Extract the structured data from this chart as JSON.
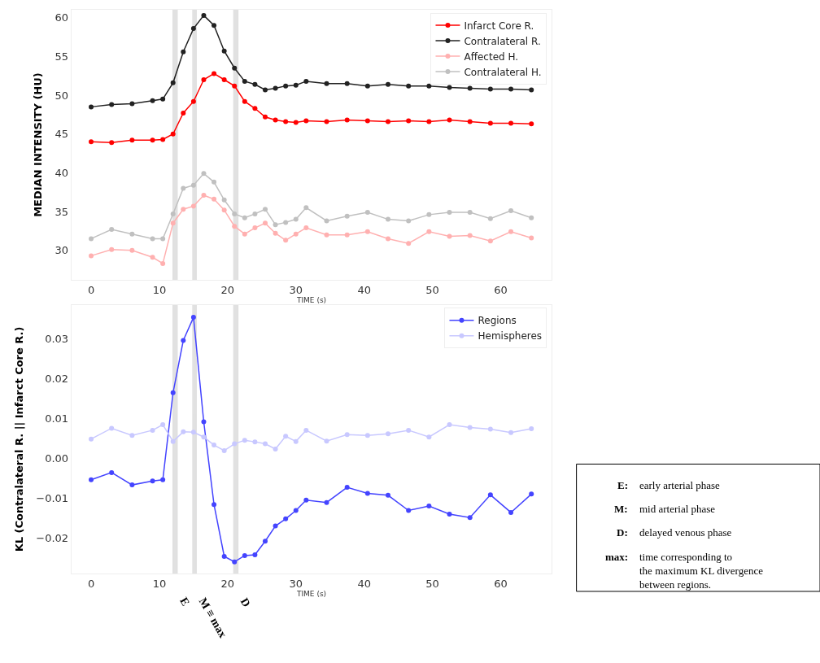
{
  "chart_data": [
    {
      "type": "line",
      "ylabel": "MEDIAN INTENSITY (HU)",
      "xlabel": "TIME (s)",
      "x": [
        0,
        3,
        6,
        9,
        10.5,
        12,
        13.5,
        15,
        16.5,
        18,
        19.5,
        21,
        22.5,
        24,
        25.5,
        27,
        28.5,
        30,
        31.5,
        34.5,
        37.5,
        40.5,
        43.5,
        46.5,
        49.5,
        52.5,
        55.5,
        58.5,
        61.5,
        64.5
      ],
      "series": [
        {
          "name": "Infarct Core R.",
          "color": "#ff0000",
          "values": [
            44.0,
            43.9,
            44.2,
            44.2,
            44.3,
            45.0,
            47.7,
            49.2,
            52.0,
            52.8,
            52.0,
            51.2,
            49.2,
            48.3,
            47.2,
            46.8,
            46.6,
            46.5,
            46.7,
            46.6,
            46.8,
            46.7,
            46.6,
            46.7,
            46.6,
            46.8,
            46.6,
            46.4,
            46.4,
            46.3
          ]
        },
        {
          "name": "Contralateral R.",
          "color": "#222222",
          "values": [
            48.5,
            48.8,
            48.9,
            49.3,
            49.5,
            51.6,
            55.6,
            58.6,
            60.3,
            59.0,
            55.7,
            53.5,
            51.8,
            51.4,
            50.7,
            50.9,
            51.2,
            51.3,
            51.8,
            51.5,
            51.5,
            51.2,
            51.4,
            51.2,
            51.2,
            51.0,
            50.9,
            50.8,
            50.8,
            50.7
          ]
        },
        {
          "name": "Affected H.",
          "color": "#ffb0b0",
          "values": [
            29.3,
            30.1,
            30.0,
            29.1,
            28.3,
            33.5,
            35.3,
            35.7,
            37.1,
            36.6,
            35.2,
            33.1,
            32.1,
            32.9,
            33.5,
            32.2,
            31.3,
            32.1,
            32.9,
            32.0,
            32.0,
            32.4,
            31.5,
            30.9,
            32.4,
            31.8,
            31.9,
            31.2,
            32.4,
            31.6
          ]
        },
        {
          "name": "Contralateral H.",
          "color": "#c0c0c0",
          "values": [
            31.5,
            32.7,
            32.1,
            31.5,
            31.5,
            34.7,
            38.0,
            38.4,
            39.9,
            38.8,
            36.5,
            34.7,
            34.2,
            34.7,
            35.3,
            33.3,
            33.6,
            34.0,
            35.5,
            33.8,
            34.4,
            34.9,
            34.0,
            33.8,
            34.6,
            34.9,
            34.9,
            34.1,
            35.1,
            34.2
          ]
        }
      ],
      "xlim": [
        -2.9,
        67.5
      ],
      "xticks": [
        0,
        10,
        20,
        30,
        40,
        50,
        60
      ],
      "ylim": [
        26.2,
        61
      ],
      "yticks": [
        30,
        35,
        40,
        45,
        50,
        55,
        60
      ],
      "bands": [
        {
          "axis": "x",
          "from": 12.0,
          "to": 12.6,
          "color": "#aaaaaa"
        },
        {
          "axis": "x",
          "from": 14.9,
          "to": 15.4,
          "color": "#aaaaaa"
        },
        {
          "axis": "x",
          "from": 20.9,
          "to": 21.5,
          "color": "#aaaaaa"
        }
      ],
      "legend": "top right",
      "marker": "circle",
      "line_style": "solid",
      "grid": false
    },
    {
      "type": "line",
      "ylabel": "KL (Contralateral R. || Infarct Core R.)",
      "xlabel": "TIME (s)",
      "x": [
        0,
        3,
        6,
        9,
        10.5,
        12,
        13.5,
        15,
        16.5,
        18,
        19.5,
        21,
        22.5,
        24,
        25.5,
        27,
        28.5,
        30,
        31.5,
        34.5,
        37.5,
        40.5,
        43.5,
        46.5,
        49.5,
        52.5,
        55.5,
        58.5,
        61.5,
        64.5
      ],
      "series": [
        {
          "name": "Regions",
          "color": "#4444ff",
          "values": [
            -0.0053,
            -0.0035,
            -0.0066,
            -0.0056,
            -0.0053,
            0.0165,
            0.0296,
            0.0354,
            0.0092,
            -0.0115,
            -0.0245,
            -0.0259,
            -0.0243,
            -0.0241,
            -0.0207,
            -0.0169,
            -0.0151,
            -0.013,
            -0.0104,
            -0.011,
            -0.0072,
            -0.0087,
            -0.0092,
            -0.013,
            -0.0119,
            -0.0139,
            -0.0148,
            -0.0091,
            -0.0135,
            -0.0089
          ]
        },
        {
          "name": "Hemispheres",
          "color": "#c8c8ff",
          "values": [
            0.0049,
            0.0076,
            0.0058,
            0.0071,
            0.0085,
            0.0043,
            0.0067,
            0.0066,
            0.0054,
            0.0034,
            0.002,
            0.0037,
            0.0046,
            0.0042,
            0.0037,
            0.0024,
            0.0056,
            0.0043,
            0.0071,
            0.0044,
            0.006,
            0.0058,
            0.0062,
            0.0071,
            0.0054,
            0.0085,
            0.0078,
            0.0074,
            0.0065,
            0.0075
          ]
        }
      ],
      "xlim": [
        -2.9,
        67.5
      ],
      "xticks": [
        0,
        10,
        20,
        30,
        40,
        50,
        60
      ],
      "ylim": [
        -0.0288,
        0.0385
      ],
      "yticks": [
        {
          "value": -0.02,
          "label": "−0.02"
        },
        {
          "value": -0.01,
          "label": "−0.01"
        },
        {
          "value": 0,
          "label": "0.00"
        },
        0.01,
        0.02,
        0.03
      ],
      "bands": [
        {
          "axis": "x",
          "from": 12.0,
          "to": 12.6,
          "label": "E",
          "color": "#aaaaaa"
        },
        {
          "axis": "x",
          "from": 14.9,
          "to": 15.4,
          "label": "M ≡ max",
          "color": "#aaaaaa"
        },
        {
          "axis": "x",
          "from": 20.9,
          "to": 21.5,
          "label": "D",
          "color": "#aaaaaa"
        }
      ],
      "legend": "top right",
      "marker": "circle",
      "line_style": "solid",
      "grid": false
    },
    {
      "type": "other",
      "annotations": [
        "E:",
        "early arterial phase",
        "M:",
        "mid arterial phase",
        "D:",
        "delayed venous phase",
        "max:",
        "time corresponding to\nthe maximum KL divergence\nbetween regions."
      ]
    }
  ]
}
